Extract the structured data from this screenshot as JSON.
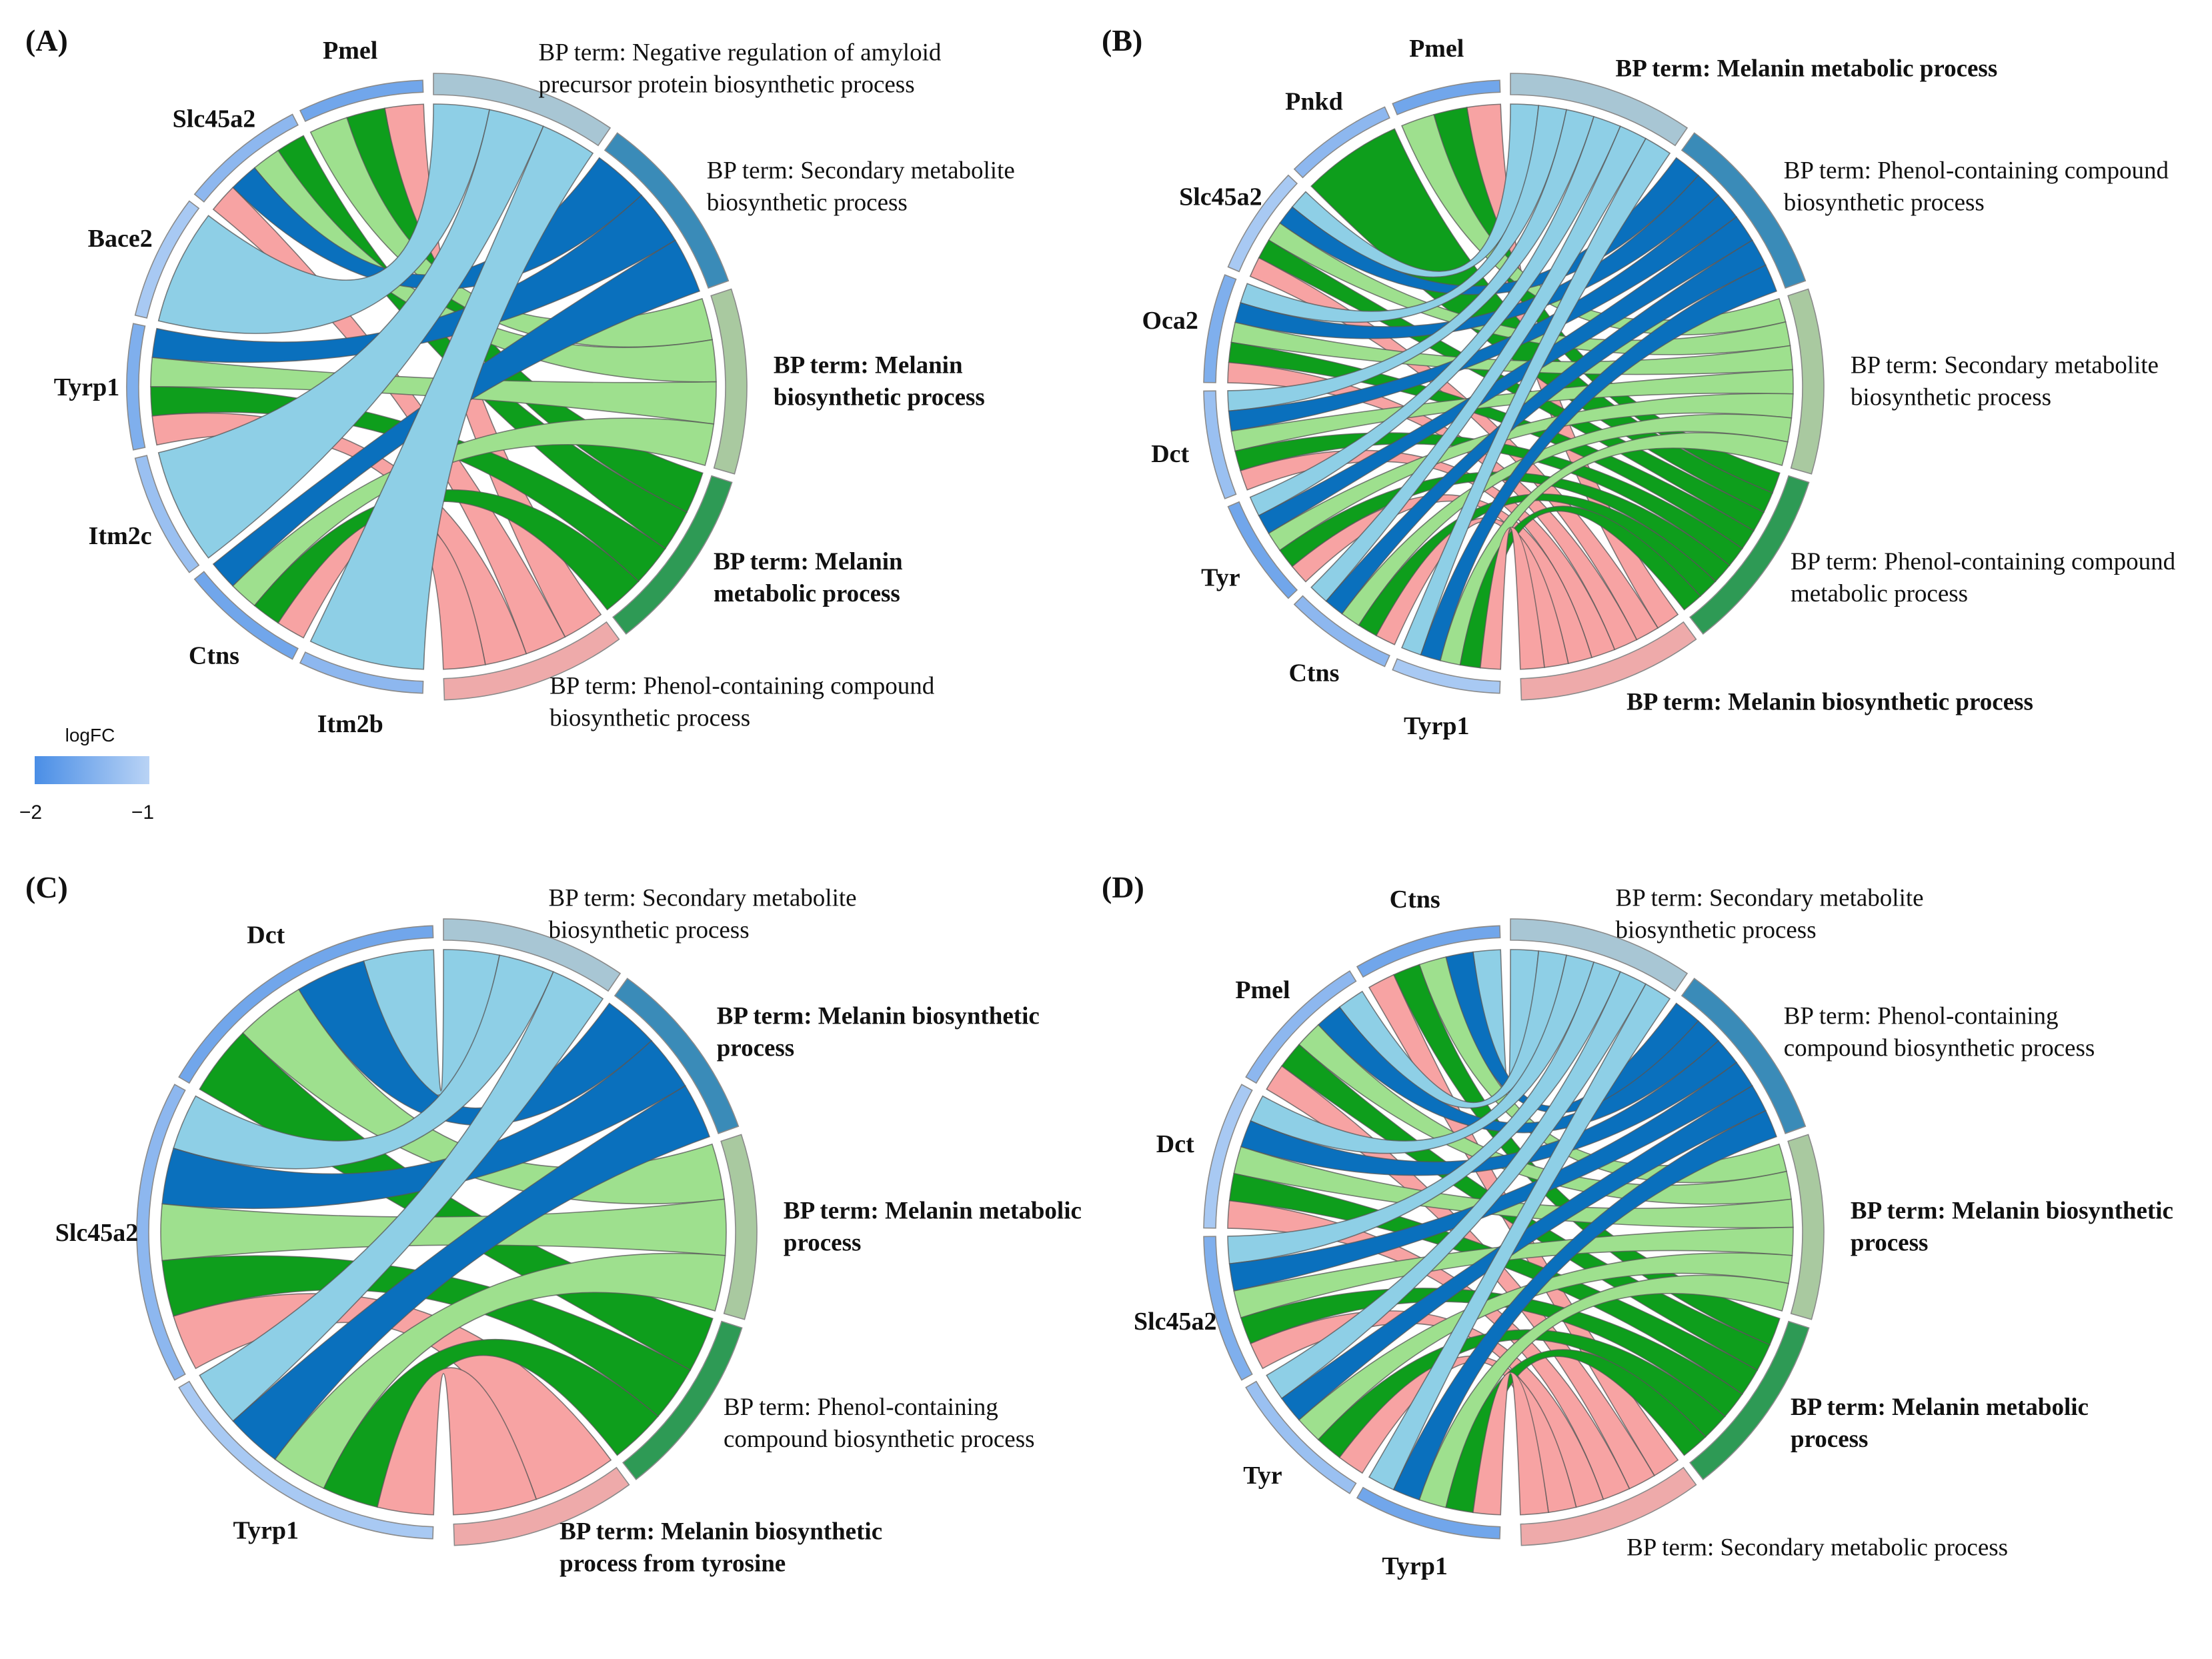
{
  "chart_data": [
    {
      "type": "chord",
      "panel": "(A)",
      "genes": [
        "Pmel",
        "Slc45a2",
        "Bace2",
        "Tyrp1",
        "Itm2c",
        "Ctns",
        "Itm2b"
      ],
      "terms": [
        {
          "label": "BP term: Negative regulation of amyloid precursor protein biosynthetic process",
          "lines": [
            "BP term: Negative regulation of amyloid",
            "precursor protein biosynthetic process"
          ],
          "bold": false,
          "color": "#8ecfe6",
          "arc_color": "#a8c6d4"
        },
        {
          "label": "BP term: Secondary metabolite biosynthetic process",
          "lines": [
            "BP term: Secondary metabolite",
            "biosynthetic process"
          ],
          "bold": false,
          "color": "#0a70bd",
          "arc_color": "#3a8bb8"
        },
        {
          "label": "BP term: Melanin biosynthetic process",
          "lines": [
            "BP term: Melanin",
            "biosynthetic process"
          ],
          "bold": true,
          "color": "#9ee08e",
          "arc_color": "#a9c9a0"
        },
        {
          "label": "BP term: Melanin metabolic process",
          "lines": [
            "BP term: Melanin",
            "metabolic process"
          ],
          "bold": true,
          "color": "#0e9e1c",
          "arc_color": "#2e9a55"
        },
        {
          "label": "BP term: Phenol-containing compound biosynthetic process",
          "lines": [
            "BP term: Phenol-containing compound",
            "biosynthetic process"
          ],
          "bold": false,
          "color": "#f7a3a3",
          "arc_color": "#eeaaaa"
        }
      ],
      "links": [
        [
          "Pmel",
          4
        ],
        [
          "Pmel",
          3
        ],
        [
          "Pmel",
          2
        ],
        [
          "Slc45a2",
          3
        ],
        [
          "Slc45a2",
          2
        ],
        [
          "Slc45a2",
          1
        ],
        [
          "Slc45a2",
          4
        ],
        [
          "Bace2",
          0
        ],
        [
          "Tyrp1",
          1
        ],
        [
          "Tyrp1",
          2
        ],
        [
          "Tyrp1",
          3
        ],
        [
          "Tyrp1",
          4
        ],
        [
          "Itm2c",
          0
        ],
        [
          "Ctns",
          1
        ],
        [
          "Ctns",
          2
        ],
        [
          "Ctns",
          3
        ],
        [
          "Ctns",
          4
        ],
        [
          "Itm2b",
          0
        ]
      ],
      "legend": {
        "title": "logFC",
        "min_label": "−2",
        "max_label": "−1",
        "min_color": "#4a8ee6",
        "max_color": "#b9d3f5"
      }
    },
    {
      "type": "chord",
      "panel": "(B)",
      "genes": [
        "Pmel",
        "Pnkd",
        "Slc45a2",
        "Oca2",
        "Dct",
        "Tyr",
        "Ctns",
        "Tyrp1"
      ],
      "terms": [
        {
          "label": "BP term: Melanin metabolic process",
          "lines": [
            "BP term: Melanin metabolic process"
          ],
          "bold": true,
          "color": "#8ecfe6",
          "arc_color": "#a8c6d4"
        },
        {
          "label": "BP term: Phenol-containing compound biosynthetic process",
          "lines": [
            "BP term: Phenol-containing compound",
            "biosynthetic process"
          ],
          "bold": false,
          "color": "#0a70bd",
          "arc_color": "#3a8bb8"
        },
        {
          "label": "BP term: Secondary metabolite biosynthetic process",
          "lines": [
            "BP term: Secondary metabolite",
            "biosynthetic process"
          ],
          "bold": false,
          "color": "#9ee08e",
          "arc_color": "#a9c9a0"
        },
        {
          "label": "BP term: Phenol-containing compound metabolic process",
          "lines": [
            "BP term: Phenol-containing compound",
            "metabolic process"
          ],
          "bold": false,
          "color": "#0e9e1c",
          "arc_color": "#2e9a55"
        },
        {
          "label": "BP term: Melanin biosynthetic process",
          "lines": [
            "BP term: Melanin biosynthetic process"
          ],
          "bold": true,
          "color": "#f7a3a3",
          "arc_color": "#eeaaaa"
        }
      ],
      "links": [
        [
          "Pmel",
          4
        ],
        [
          "Pmel",
          3
        ],
        [
          "Pmel",
          2
        ],
        [
          "Pnkd",
          3
        ],
        [
          "Slc45a2",
          0
        ],
        [
          "Slc45a2",
          1
        ],
        [
          "Slc45a2",
          2
        ],
        [
          "Slc45a2",
          3
        ],
        [
          "Slc45a2",
          4
        ],
        [
          "Oca2",
          0
        ],
        [
          "Oca2",
          1
        ],
        [
          "Oca2",
          2
        ],
        [
          "Oca2",
          3
        ],
        [
          "Oca2",
          4
        ],
        [
          "Dct",
          0
        ],
        [
          "Dct",
          1
        ],
        [
          "Dct",
          2
        ],
        [
          "Dct",
          3
        ],
        [
          "Dct",
          4
        ],
        [
          "Tyr",
          0
        ],
        [
          "Tyr",
          1
        ],
        [
          "Tyr",
          2
        ],
        [
          "Tyr",
          3
        ],
        [
          "Tyr",
          4
        ],
        [
          "Ctns",
          0
        ],
        [
          "Ctns",
          1
        ],
        [
          "Ctns",
          2
        ],
        [
          "Ctns",
          3
        ],
        [
          "Ctns",
          4
        ],
        [
          "Tyrp1",
          0
        ],
        [
          "Tyrp1",
          1
        ],
        [
          "Tyrp1",
          2
        ],
        [
          "Tyrp1",
          3
        ],
        [
          "Tyrp1",
          4
        ]
      ]
    },
    {
      "type": "chord",
      "panel": "(C)",
      "genes": [
        "Dct",
        "Slc45a2",
        "Tyrp1"
      ],
      "terms": [
        {
          "label": "BP term: Secondary metabolite biosynthetic process",
          "lines": [
            "BP term: Secondary metabolite",
            "biosynthetic process"
          ],
          "bold": false,
          "color": "#8ecfe6",
          "arc_color": "#a8c6d4"
        },
        {
          "label": "BP term: Melanin biosynthetic process",
          "lines": [
            "BP term: Melanin biosynthetic",
            "process"
          ],
          "bold": true,
          "color": "#0a70bd",
          "arc_color": "#3a8bb8"
        },
        {
          "label": "BP term: Melanin metabolic process",
          "lines": [
            "BP term: Melanin metabolic",
            "process"
          ],
          "bold": true,
          "color": "#9ee08e",
          "arc_color": "#a9c9a0"
        },
        {
          "label": "BP term: Phenol-containing compound biosynthetic process",
          "lines": [
            "BP term: Phenol-containing",
            "compound biosynthetic process"
          ],
          "bold": false,
          "color": "#0e9e1c",
          "arc_color": "#2e9a55"
        },
        {
          "label": "BP term: Melanin biosynthetic process from tyrosine",
          "lines": [
            "BP term: Melanin biosynthetic",
            "process from tyrosine"
          ],
          "bold": true,
          "color": "#f7a3a3",
          "arc_color": "#eeaaaa"
        }
      ],
      "links": [
        [
          "Dct",
          0
        ],
        [
          "Dct",
          1
        ],
        [
          "Dct",
          2
        ],
        [
          "Dct",
          3
        ],
        [
          "Slc45a2",
          0
        ],
        [
          "Slc45a2",
          1
        ],
        [
          "Slc45a2",
          2
        ],
        [
          "Slc45a2",
          3
        ],
        [
          "Slc45a2",
          4
        ],
        [
          "Tyrp1",
          0
        ],
        [
          "Tyrp1",
          1
        ],
        [
          "Tyrp1",
          2
        ],
        [
          "Tyrp1",
          3
        ],
        [
          "Tyrp1",
          4
        ]
      ]
    },
    {
      "type": "chord",
      "panel": "(D)",
      "genes": [
        "Ctns",
        "Pmel",
        "Dct",
        "Slc45a2",
        "Tyr",
        "Tyrp1"
      ],
      "terms": [
        {
          "label": "BP term: Secondary metabolite biosynthetic process",
          "lines": [
            "BP term: Secondary metabolite",
            "biosynthetic process"
          ],
          "bold": false,
          "color": "#8ecfe6",
          "arc_color": "#a8c6d4"
        },
        {
          "label": "BP term: Phenol-containing compound biosynthetic process",
          "lines": [
            "BP term: Phenol-containing",
            "compound biosynthetic process"
          ],
          "bold": false,
          "color": "#0a70bd",
          "arc_color": "#3a8bb8"
        },
        {
          "label": "BP term: Melanin biosynthetic process",
          "lines": [
            "BP term: Melanin biosynthetic",
            "process"
          ],
          "bold": true,
          "color": "#9ee08e",
          "arc_color": "#a9c9a0"
        },
        {
          "label": "BP term: Melanin metabolic process",
          "lines": [
            "BP term: Melanin metabolic",
            "process"
          ],
          "bold": true,
          "color": "#0e9e1c",
          "arc_color": "#2e9a55"
        },
        {
          "label": "BP term: Secondary metabolic process",
          "lines": [
            "BP term: Secondary metabolic process"
          ],
          "bold": false,
          "color": "#f7a3a3",
          "arc_color": "#eeaaaa"
        }
      ],
      "links": [
        [
          "Ctns",
          0
        ],
        [
          "Ctns",
          1
        ],
        [
          "Ctns",
          2
        ],
        [
          "Ctns",
          3
        ],
        [
          "Ctns",
          4
        ],
        [
          "Pmel",
          0
        ],
        [
          "Pmel",
          1
        ],
        [
          "Pmel",
          2
        ],
        [
          "Pmel",
          3
        ],
        [
          "Pmel",
          4
        ],
        [
          "Dct",
          0
        ],
        [
          "Dct",
          1
        ],
        [
          "Dct",
          2
        ],
        [
          "Dct",
          3
        ],
        [
          "Dct",
          4
        ],
        [
          "Slc45a2",
          0
        ],
        [
          "Slc45a2",
          1
        ],
        [
          "Slc45a2",
          2
        ],
        [
          "Slc45a2",
          3
        ],
        [
          "Slc45a2",
          4
        ],
        [
          "Tyr",
          0
        ],
        [
          "Tyr",
          1
        ],
        [
          "Tyr",
          2
        ],
        [
          "Tyr",
          3
        ],
        [
          "Tyr",
          4
        ],
        [
          "Tyrp1",
          0
        ],
        [
          "Tyrp1",
          1
        ],
        [
          "Tyrp1",
          2
        ],
        [
          "Tyrp1",
          3
        ],
        [
          "Tyrp1",
          4
        ]
      ]
    }
  ]
}
